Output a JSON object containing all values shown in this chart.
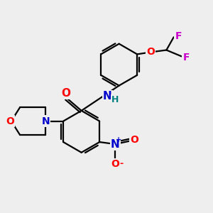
{
  "background_color": "#eeeeee",
  "bond_color": "#000000",
  "bond_width": 1.6,
  "atom_colors": {
    "O": "#ff0000",
    "N_amide": "#0000cc",
    "N_morph": "#0000cc",
    "N_nitro": "#0000cc",
    "F": "#cc00cc",
    "H": "#008080",
    "C": "#000000"
  },
  "font_size": 10,
  "figsize": [
    3.0,
    3.0
  ],
  "dpi": 100,
  "xlim": [
    0,
    10
  ],
  "ylim": [
    0,
    10
  ]
}
